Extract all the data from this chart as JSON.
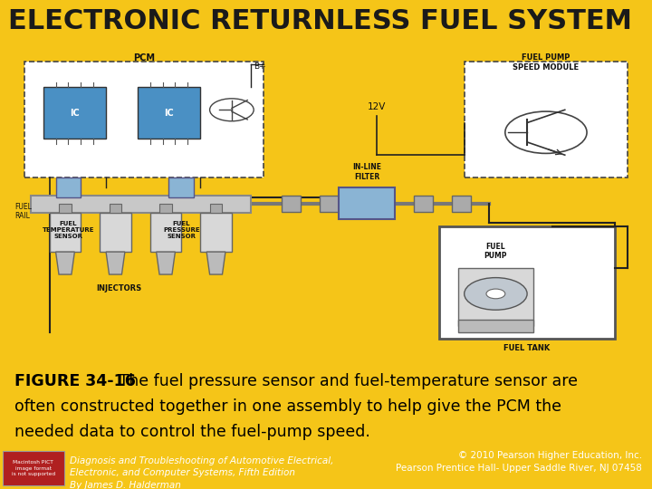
{
  "title": "ELECTRONIC RETURNLESS FUEL SYSTEM",
  "title_bg": "#F5C518",
  "title_color": "#1a1a1a",
  "title_fontsize": 22,
  "caption_bold": "FIGURE 34-16",
  "caption_text": " The fuel pressure sensor and fuel-temperature sensor are\noften constructed together in one assembly to help give the PCM the\nneeded data to control the fuel-pump speed.",
  "caption_fontsize": 12.5,
  "caption_bg": "#FEFAE8",
  "footer_bg": "#3a3a3a",
  "footer_left_line1": "Diagnosis and Troubleshooting of Automotive Electrical,",
  "footer_left_line2": "Electronic, and Computer Systems, Fifth Edition",
  "footer_left_line3": "By James D. Halderman",
  "footer_right_line1": "© 2010 Pearson Higher Education, Inc.",
  "footer_right_line2": "Pearson Prentice Hall- Upper Saddle River, NJ 07458",
  "footer_fontsize": 7.5,
  "diagram_bg": "#ffffff",
  "ic_color": "#4a90c4",
  "fuel_rail_color": "#d0d0d0",
  "filter_color": "#8ab4d4",
  "sensor_color": "#9abcd4",
  "tank_color": "#c8c8c8",
  "wire_color": "#222222",
  "label_color": "#111111"
}
